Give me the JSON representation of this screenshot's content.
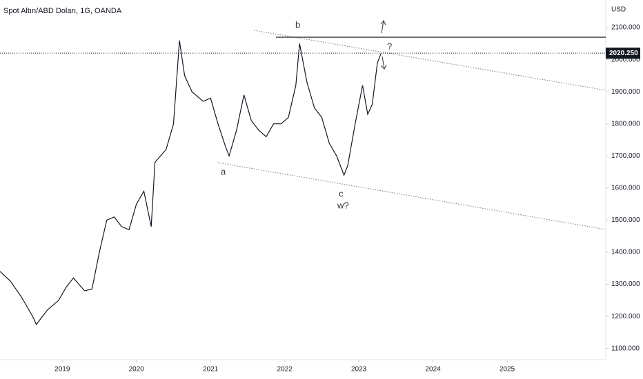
{
  "chart_data": {
    "type": "line",
    "title": "Spot Altın/ABD Doları, 1G, OANDA",
    "y_unit": "USD",
    "x": [
      2018.16,
      2018.3,
      2018.45,
      2018.6,
      2018.65,
      2018.8,
      2018.95,
      2019.05,
      2019.15,
      2019.3,
      2019.4,
      2019.5,
      2019.6,
      2019.7,
      2019.8,
      2019.9,
      2020.0,
      2020.1,
      2020.2,
      2020.25,
      2020.4,
      2020.5,
      2020.58,
      2020.65,
      2020.75,
      2020.9,
      2021.0,
      2021.1,
      2021.2,
      2021.25,
      2021.35,
      2021.45,
      2021.55,
      2021.65,
      2021.75,
      2021.85,
      2021.95,
      2022.05,
      2022.15,
      2022.2,
      2022.3,
      2022.4,
      2022.5,
      2022.6,
      2022.7,
      2022.8,
      2022.85,
      2022.95,
      2023.05,
      2023.12,
      2023.18,
      2023.25,
      2023.3
    ],
    "values": [
      1340,
      1310,
      1260,
      1200,
      1175,
      1220,
      1250,
      1290,
      1320,
      1280,
      1285,
      1400,
      1500,
      1510,
      1480,
      1470,
      1550,
      1590,
      1480,
      1680,
      1720,
      1800,
      2060,
      1950,
      1900,
      1870,
      1880,
      1800,
      1730,
      1700,
      1780,
      1890,
      1810,
      1780,
      1760,
      1800,
      1800,
      1820,
      1920,
      2050,
      1930,
      1850,
      1820,
      1740,
      1700,
      1640,
      1670,
      1800,
      1920,
      1830,
      1860,
      1990,
      2020
    ],
    "color": "#131722",
    "xlim": [
      2018.16,
      2026.33
    ],
    "xticks": [
      2019,
      2020,
      2021,
      2022,
      2023,
      2024,
      2025
    ],
    "ylim": [
      1065,
      2186
    ],
    "yticks": [
      {
        "value": 1100,
        "label": "1100.000"
      },
      {
        "value": 1200,
        "label": "1200.000"
      },
      {
        "value": 1300,
        "label": "1300.000"
      },
      {
        "value": 1400,
        "label": "1400.000"
      },
      {
        "value": 1500,
        "label": "1500.000"
      },
      {
        "value": 1600,
        "label": "1600.000"
      },
      {
        "value": 1700,
        "label": "1700.000"
      },
      {
        "value": 1800,
        "label": "1800.000"
      },
      {
        "value": 1900,
        "label": "1900.000"
      },
      {
        "value": 2000,
        "label": "2000.000"
      },
      {
        "value": 2100,
        "label": "2100.000"
      }
    ],
    "last_value": 2020.25,
    "last_value_label": "2020.250",
    "annotations": [
      "a",
      "b",
      "c",
      "w?",
      "?"
    ]
  }
}
